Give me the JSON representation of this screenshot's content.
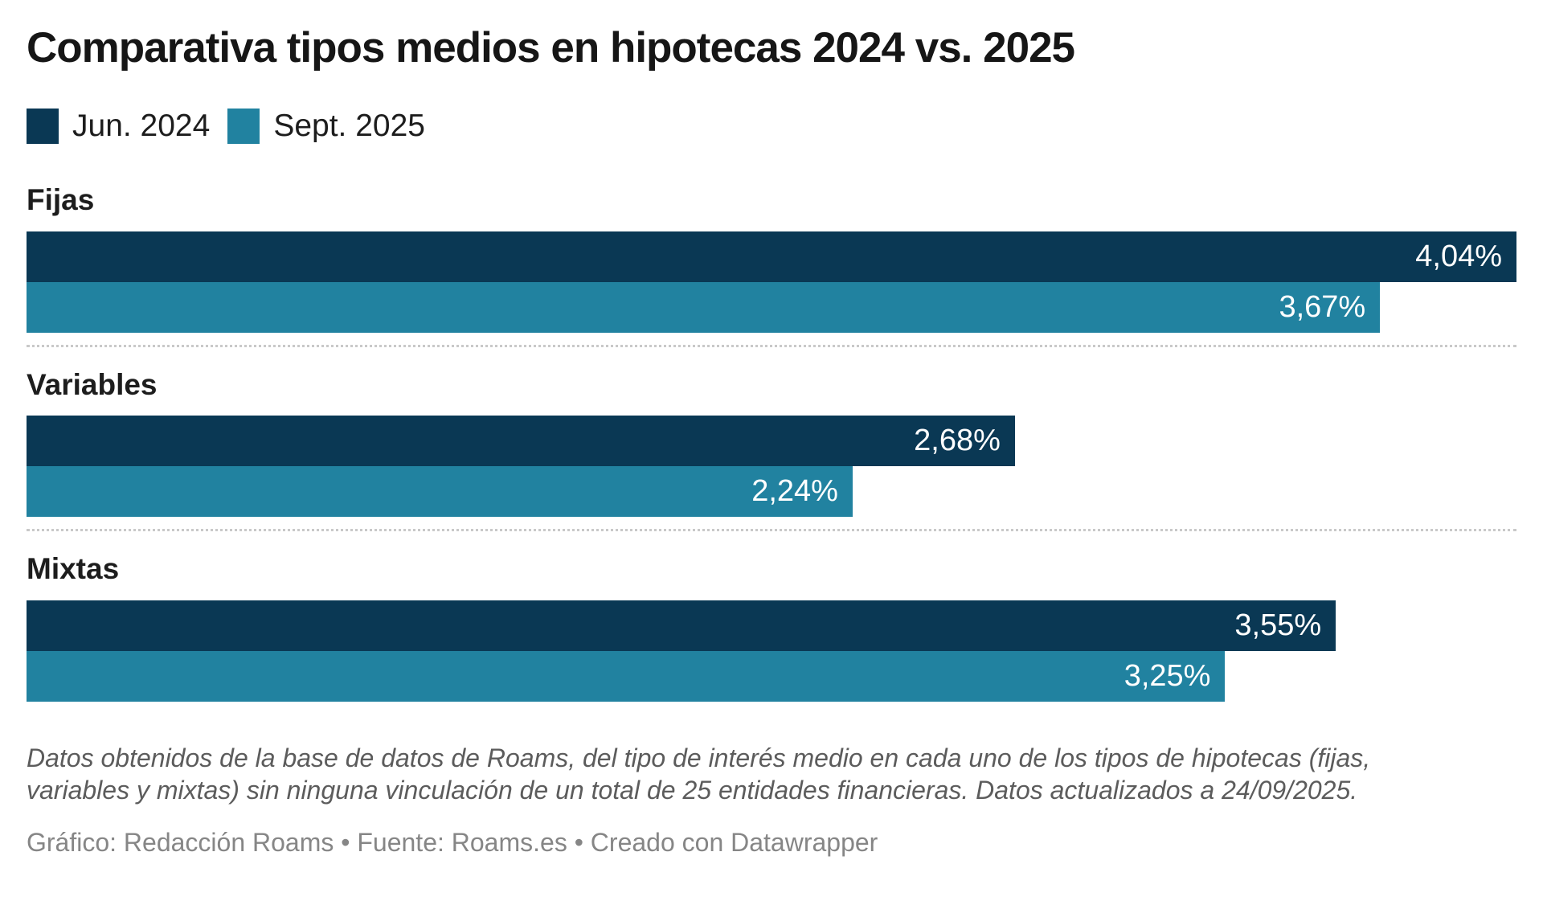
{
  "header": {
    "title": "Comparativa tipos medios en hipotecas 2024 vs. 2025"
  },
  "legend": {
    "items": [
      {
        "label": "Jun. 2024",
        "color": "#0A3854"
      },
      {
        "label": "Sept. 2025",
        "color": "#2182A0"
      }
    ]
  },
  "chart_data": {
    "type": "bar",
    "orientation": "horizontal",
    "title": "Comparativa tipos medios en hipotecas 2024 vs. 2025",
    "categories": [
      "Fijas",
      "Variables",
      "Mixtas"
    ],
    "series": [
      {
        "name": "Jun. 2024",
        "color": "#0A3854",
        "values": [
          4.04,
          2.68,
          3.55
        ],
        "value_labels": [
          "4,04%",
          "2,68%",
          "3,55%"
        ]
      },
      {
        "name": "Sept. 2025",
        "color": "#2182A0",
        "values": [
          3.67,
          2.24,
          3.25
        ],
        "value_labels": [
          "3,67%",
          "2,24%",
          "3,25%"
        ]
      }
    ],
    "xlim": [
      0,
      4.04
    ],
    "value_suffix": "%",
    "grid": false,
    "legend_position": "top-left",
    "value_label_position": "inside-end",
    "value_label_color": "#ffffff",
    "separator_style": "dotted"
  },
  "footer": {
    "note": "Datos obtenidos de la base de datos de Roams, del tipo de interés medio en cada uno de los tipos de hipotecas (fijas, variables y mixtas) sin ninguna vinculación de un total de 25 entidades financieras. Datos actualizados a 24/09/2025.",
    "byline": "Gráfico: Redacción Roams • Fuente: Roams.es • Creado con Datawrapper"
  }
}
